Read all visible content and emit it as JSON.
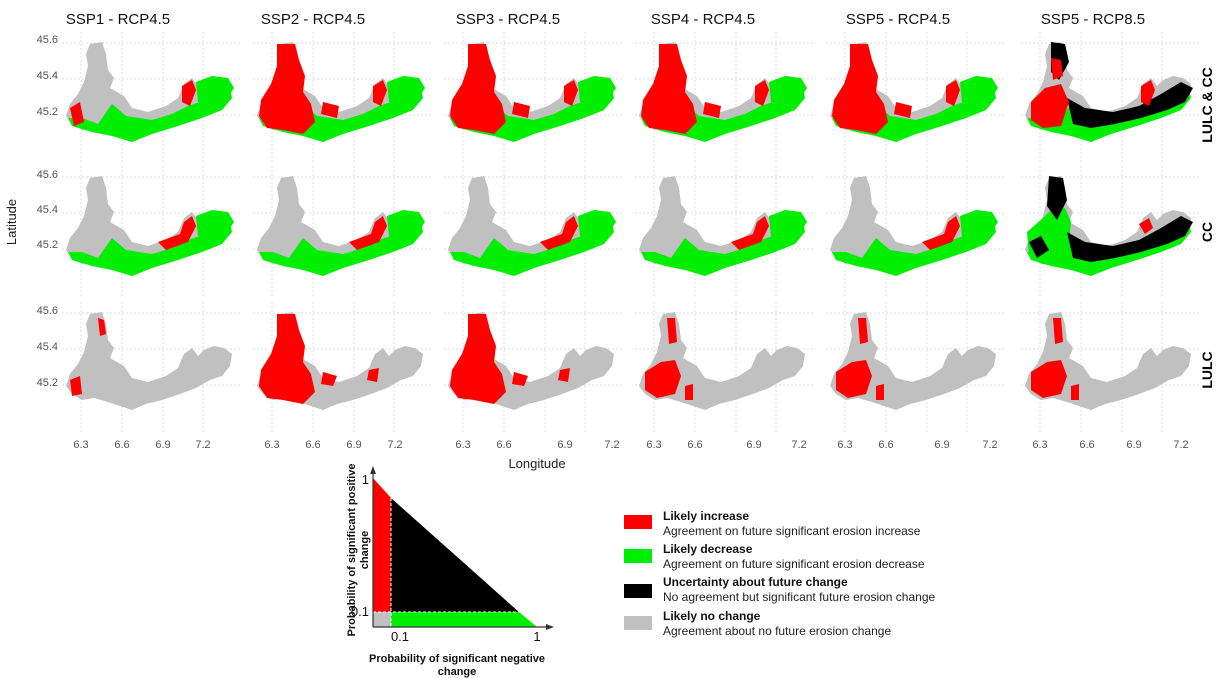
{
  "colors": {
    "increase": "#ff0000",
    "decrease": "#00ee00",
    "uncertain": "#000000",
    "nochange": "#c0c0c0",
    "grid": "#dddddd"
  },
  "columns": [
    "SSP1 - RCP4.5",
    "SSP2 - RCP4.5",
    "SSP3 - RCP4.5",
    "SSP4 - RCP4.5",
    "SSP5 - RCP4.5",
    "SSP5 - RCP8.5"
  ],
  "rows": [
    "LULC & CC",
    "CC",
    "LULC"
  ],
  "axes": {
    "x_title": "Longitude",
    "y_title": "Latitude",
    "x_ticks": [
      "6.3",
      "6.6",
      "6.9",
      "7.2"
    ],
    "y_ticks": [
      "45.6",
      "45.4",
      "45.2"
    ],
    "x_range": [
      6.1,
      7.25
    ],
    "y_range": [
      45.08,
      45.6
    ]
  },
  "map_classes": [
    [
      "increase_moderate",
      "increase_large",
      "increase_large",
      "increase_large",
      "increase_large",
      "uncertain_large"
    ],
    [
      "decrease_small",
      "decrease_small",
      "decrease_small",
      "decrease_small",
      "decrease_small",
      "uncertain_cc"
    ],
    [
      "lulc_small",
      "lulc_large",
      "lulc_large",
      "lulc_medium",
      "lulc_medium",
      "lulc_medium"
    ]
  ],
  "triangle": {
    "y_label_line1": "Probability of significant positive",
    "y_label_line2": "change",
    "x_label_line1": "Probability of significant negative",
    "x_label_line2": "change",
    "y_ticks": [
      "1",
      "0.1"
    ],
    "x_ticks": [
      "0.1",
      "1"
    ]
  },
  "legend": [
    {
      "title": "Likely increase",
      "desc": "Agreement on future significant erosion increase",
      "color": "#ff0000"
    },
    {
      "title": "Likely decrease",
      "desc": "Agreement on future significant erosion decrease",
      "color": "#00ee00"
    },
    {
      "title": "Uncertainty about future change",
      "desc": "No agreement but significant future erosion change",
      "color": "#000000"
    },
    {
      "title": "Likely no change",
      "desc": "Agreement about no future erosion change",
      "color": "#c0c0c0"
    }
  ]
}
